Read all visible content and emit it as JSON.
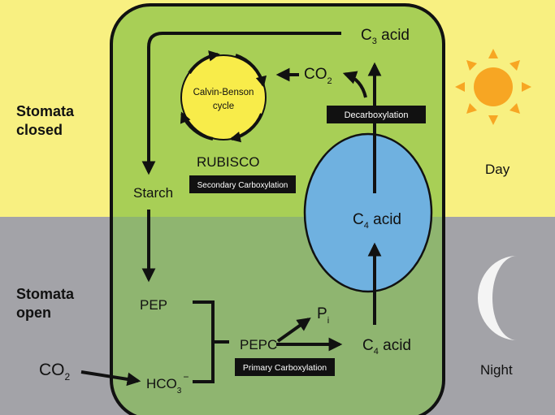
{
  "background": {
    "day_color": "#f8f081",
    "night_color": "#a3a3a8",
    "cell_day_color": "#a8cf56",
    "cell_night_color": "#8fb570",
    "cycle_color": "#f8ec4a",
    "vacuole_color": "#6fb1e0",
    "sun_color": "#f7a623"
  },
  "side_labels": {
    "day_stomata_line1": "Stomata",
    "day_stomata_line2": "closed",
    "night_stomata_line1": "Stomata",
    "night_stomata_line2": "open",
    "day": "Day",
    "night": "Night"
  },
  "molecules": {
    "c3_acid": {
      "sub": "3",
      "suffix": " acid"
    },
    "co2_top": {
      "base": "CO",
      "sub": "2"
    },
    "c4_acid_vacuole": {
      "sub": "4",
      "suffix": " acid"
    },
    "c4_acid_bottom": {
      "sub": "4",
      "suffix": " acid"
    },
    "starch": "Starch",
    "rubisco": "RUBISCO",
    "pep": "PEP",
    "pepc": "PEPC",
    "pi": {
      "base": "P",
      "sub": "i"
    },
    "co2_outside": {
      "base": "CO",
      "sub": "2"
    },
    "hco3": {
      "base": "HCO",
      "sub": "3",
      "sup": "−"
    }
  },
  "cycle": {
    "line1": "Calvin-Benson",
    "line2": "cycle"
  },
  "boxes": {
    "decarboxylation": "Decarboxylation",
    "secondary_carboxylation": "Secondary Carboxylation",
    "primary_carboxylation": "Primary Carboxylation"
  },
  "icons": {
    "sun": "sun-icon",
    "moon": "crescent-moon-icon"
  }
}
